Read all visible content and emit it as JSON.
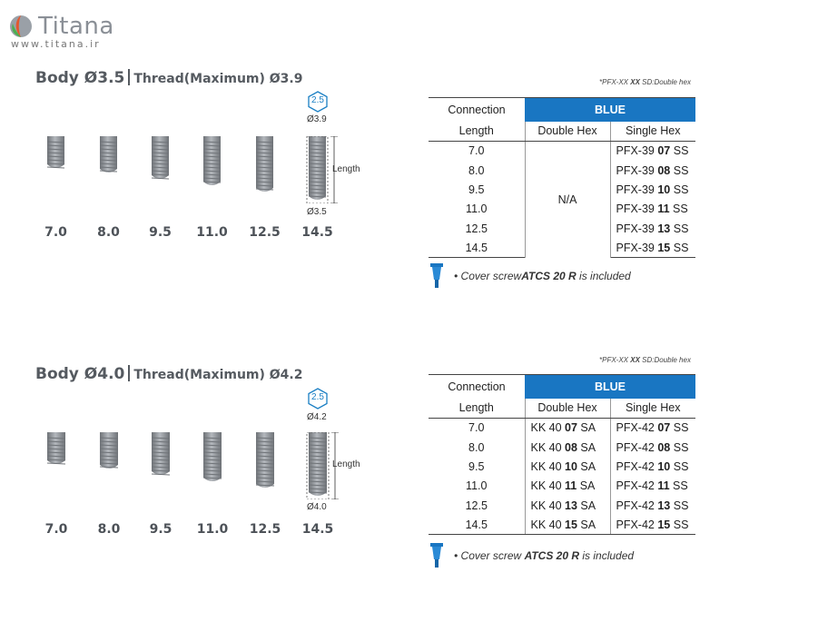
{
  "logo": {
    "name": "Titana",
    "url": "www.titana.ir"
  },
  "sections": [
    {
      "title_body": "Body Ø3.5",
      "title_thread": "Thread(Maximum) Ø3.9",
      "lengths": [
        "7.0",
        "8.0",
        "9.5",
        "11.0",
        "12.5",
        "14.5"
      ],
      "hex_badge": "2.5",
      "top_diameter": "Ø3.9",
      "bottom_diameter": "Ø3.5",
      "length_label": "Length",
      "footnote_prefix": "*PFX-XX ",
      "footnote_bold": "XX",
      "footnote_suffix": " SD:Double hex",
      "table": {
        "connection": "Connection",
        "color": "BLUE",
        "col_length": "Length",
        "col_double": "Double Hex",
        "col_single": "Single Hex",
        "double_na": "N/A",
        "rows": [
          {
            "length": "7.0",
            "single_pre": "PFX-39 ",
            "single_bold": "07",
            "single_post": " SS"
          },
          {
            "length": "8.0",
            "single_pre": "PFX-39 ",
            "single_bold": "08",
            "single_post": " SS"
          },
          {
            "length": "9.5",
            "single_pre": "PFX-39 ",
            "single_bold": "10",
            "single_post": " SS"
          },
          {
            "length": "11.0",
            "single_pre": "PFX-39 ",
            "single_bold": "11",
            "single_post": " SS"
          },
          {
            "length": "12.5",
            "single_pre": "PFX-39 ",
            "single_bold": "13",
            "single_post": " SS"
          },
          {
            "length": "14.5",
            "single_pre": "PFX-39 ",
            "single_bold": "15",
            "single_post": " SS"
          }
        ]
      },
      "cover_pre": "• Cover screw",
      "cover_bold": "ATCS 20 R",
      "cover_post": " is included"
    },
    {
      "title_body": "Body Ø4.0",
      "title_thread": "Thread(Maximum) Ø4.2",
      "lengths": [
        "7.0",
        "8.0",
        "9.5",
        "11.0",
        "12.5",
        "14.5"
      ],
      "hex_badge": "2.5",
      "top_diameter": "Ø4.2",
      "bottom_diameter": "Ø4.0",
      "length_label": "Length",
      "footnote_prefix": "*PFX-XX ",
      "footnote_bold": "XX",
      "footnote_suffix": " SD:Double hex",
      "table": {
        "connection": "Connection",
        "color": "BLUE",
        "col_length": "Length",
        "col_double": "Double Hex",
        "col_single": "Single Hex",
        "rows": [
          {
            "length": "7.0",
            "double_pre": "KK 40 ",
            "double_bold": "07",
            "double_post": " SA",
            "single_pre": "PFX-42 ",
            "single_bold": "07",
            "single_post": " SS"
          },
          {
            "length": "8.0",
            "double_pre": "KK 40 ",
            "double_bold": "08",
            "double_post": " SA",
            "single_pre": "PFX-42 ",
            "single_bold": "08",
            "single_post": " SS"
          },
          {
            "length": "9.5",
            "double_pre": "KK 40 ",
            "double_bold": "10",
            "double_post": " SA",
            "single_pre": "PFX-42 ",
            "single_bold": "10",
            "single_post": " SS"
          },
          {
            "length": "11.0",
            "double_pre": "KK 40 ",
            "double_bold": "11",
            "double_post": " SA",
            "single_pre": "PFX-42 ",
            "single_bold": "11",
            "single_post": " SS"
          },
          {
            "length": "12.5",
            "double_pre": "KK 40 ",
            "double_bold": "13",
            "double_post": " SA",
            "single_pre": "PFX-42 ",
            "single_bold": "13",
            "single_post": " SS"
          },
          {
            "length": "14.5",
            "double_pre": "KK 40 ",
            "double_bold": "15",
            "double_post": " SA",
            "single_pre": "PFX-42 ",
            "single_bold": "15",
            "single_post": " SS"
          }
        ]
      },
      "cover_pre": "• Cover screw ",
      "cover_bold": "ATCS 20 R",
      "cover_post": " is included"
    }
  ],
  "colors": {
    "blue": "#1976c2",
    "implant_gray": "#8d9197",
    "badge": "#1a7fc4"
  }
}
